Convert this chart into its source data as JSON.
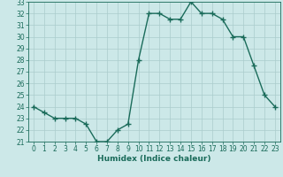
{
  "title": "",
  "xlabel": "Humidex (Indice chaleur)",
  "x": [
    0,
    1,
    2,
    3,
    4,
    5,
    6,
    7,
    8,
    9,
    10,
    11,
    12,
    13,
    14,
    15,
    16,
    17,
    18,
    19,
    20,
    21,
    22,
    23
  ],
  "y": [
    24,
    23.5,
    23,
    23,
    23,
    22.5,
    21,
    21,
    22,
    22.5,
    28,
    32,
    32,
    31.5,
    31.5,
    33,
    32,
    32,
    31.5,
    30,
    30,
    27.5,
    25,
    24
  ],
  "line_color": "#1a6b5a",
  "marker": "+",
  "marker_size": 4,
  "line_width": 1.0,
  "bg_color": "#cce8e8",
  "grid_color": "#aacccc",
  "ylim": [
    21,
    33
  ],
  "yticks": [
    21,
    22,
    23,
    24,
    25,
    26,
    27,
    28,
    29,
    30,
    31,
    32,
    33
  ],
  "xticks": [
    0,
    1,
    2,
    3,
    4,
    5,
    6,
    7,
    8,
    9,
    10,
    11,
    12,
    13,
    14,
    15,
    16,
    17,
    18,
    19,
    20,
    21,
    22,
    23
  ],
  "tick_fontsize": 5.5,
  "xlabel_fontsize": 6.5
}
